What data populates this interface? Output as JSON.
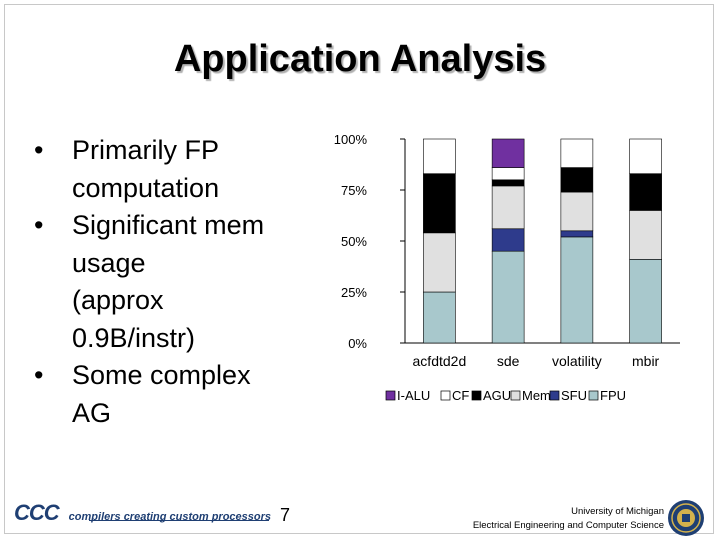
{
  "slide": {
    "title": "Application Analysis",
    "bullets": [
      {
        "lines": [
          "Primarily FP",
          "computation"
        ]
      },
      {
        "lines": [
          "Significant mem",
          "usage"
        ],
        "extra": [
          "(approx",
          "0.9B/instr)"
        ]
      },
      {
        "lines": [
          "Some complex",
          "AG"
        ]
      }
    ],
    "page_number": "7",
    "footer": {
      "logo_text": "CCC",
      "logo_tagline": "compilers creating custom processors",
      "university": "University of Michigan",
      "department": "Electrical Engineering and Computer Science"
    }
  },
  "colors": {
    "I-ALU": "#7030a0",
    "CF": "#ffffff",
    "AGU": "#000000",
    "Mem": "#e0e0e0",
    "SFU": "#2e3b8c",
    "FPU": "#a8c8cc"
  },
  "chart_data": {
    "type": "bar",
    "stacked": true,
    "percent": true,
    "categories": [
      "acfdtd2d",
      "sde",
      "volatility",
      "mbir"
    ],
    "yticks": [
      "100%",
      "75%",
      "50%",
      "25%",
      "0%"
    ],
    "ylim": [
      0,
      100
    ],
    "legend_position": "bottom",
    "series": [
      {
        "name": "FPU",
        "values": [
          25,
          45,
          52,
          41
        ]
      },
      {
        "name": "SFU",
        "values": [
          0,
          11,
          3,
          0
        ]
      },
      {
        "name": "Mem",
        "values": [
          29,
          21,
          19,
          24
        ]
      },
      {
        "name": "AGU",
        "values": [
          29,
          3,
          12,
          18
        ]
      },
      {
        "name": "CF",
        "values": [
          17,
          6,
          14,
          17
        ]
      },
      {
        "name": "I-ALU",
        "values": [
          0,
          14,
          0,
          0
        ]
      }
    ],
    "legend_order": [
      "I-ALU",
      "CF",
      "AGU",
      "Mem",
      "SFU",
      "FPU"
    ]
  }
}
